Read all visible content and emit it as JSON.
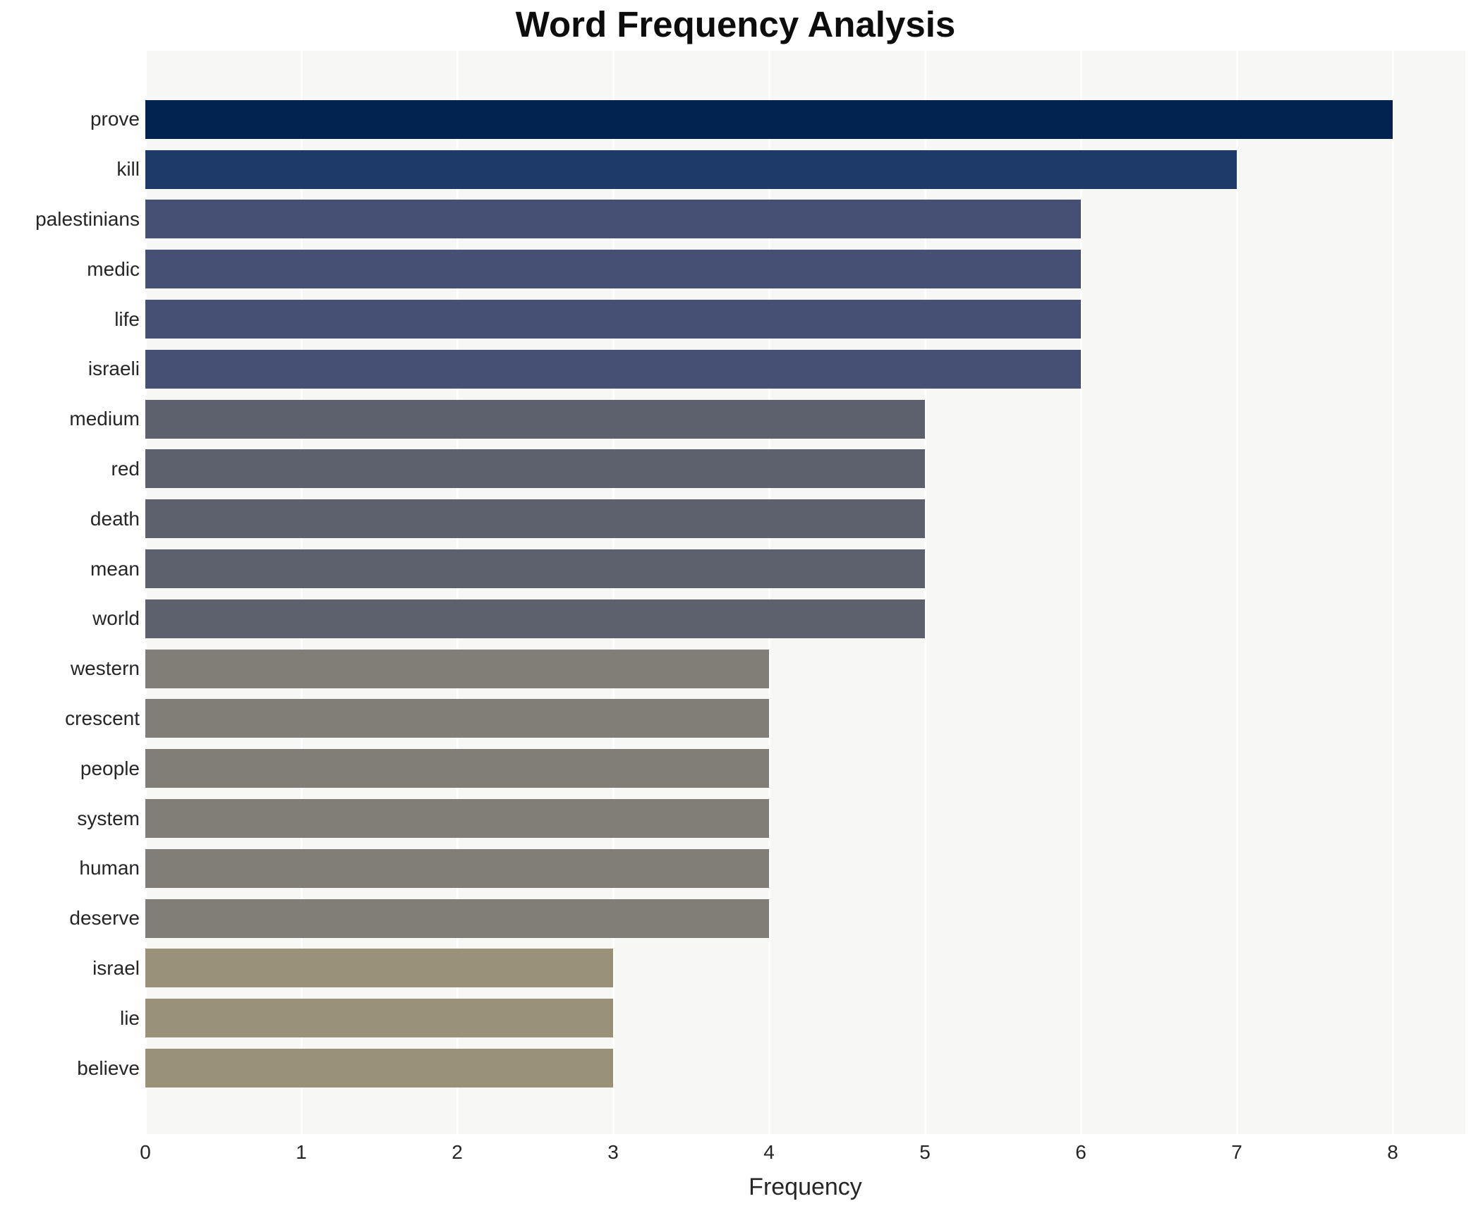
{
  "page": {
    "background_color": "#ffffff",
    "panel_background_color": "#f7f7f5",
    "gridline_color": "#ffffff",
    "text_color": "#262626",
    "title_color": "#0d0d0d"
  },
  "chart_data": {
    "type": "bar",
    "orientation": "horizontal",
    "title": "Word Frequency Analysis",
    "xlabel": "Frequency",
    "ylabel": "",
    "categories": [
      "prove",
      "kill",
      "palestinians",
      "medic",
      "life",
      "israeli",
      "medium",
      "red",
      "death",
      "mean",
      "world",
      "western",
      "crescent",
      "people",
      "system",
      "human",
      "deserve",
      "israel",
      "lie",
      "believe"
    ],
    "values": [
      8,
      7,
      6,
      6,
      6,
      6,
      5,
      5,
      5,
      5,
      5,
      4,
      4,
      4,
      4,
      4,
      4,
      3,
      3,
      3
    ],
    "xticks": [
      0,
      1,
      2,
      3,
      4,
      5,
      6,
      7,
      8
    ],
    "xlim": [
      0,
      8.47
    ],
    "grid": "vertical-only",
    "legend": null,
    "bar_colors_by_value": {
      "8": "#022350",
      "7": "#1e3a69",
      "6": "#455074",
      "5": "#5c616d",
      "4": "#807e77",
      "3": "#9a9278"
    }
  }
}
